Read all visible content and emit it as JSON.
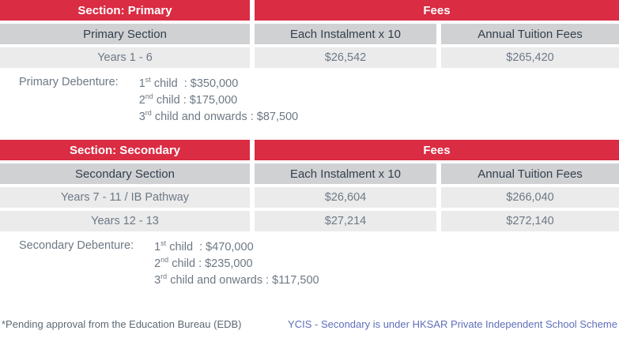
{
  "colors": {
    "header_red": "#da2c43",
    "subheader_gray": "#d0d1d3",
    "row_light": "#ebebec",
    "header_text_dark": "#33404d",
    "body_text": "#6d7884",
    "note_blue": "#5e6fba"
  },
  "primary": {
    "section_label": "Section: Primary",
    "fees_label": "Fees",
    "columns": [
      "Primary Section",
      "Each Instalment x 10",
      "Annual Tuition Fees"
    ],
    "rows": [
      {
        "label": "Years 1 - 6",
        "instalment": "$26,542",
        "annual": "$265,420"
      }
    ],
    "debenture": {
      "label": "Primary Debenture:",
      "rows": [
        {
          "num": "1",
          "sup": "st",
          "rest": " child  : $350,000"
        },
        {
          "num": "2",
          "sup": "nd",
          "rest": " child : $175,000"
        },
        {
          "num": "3",
          "sup": "rd",
          "rest": " child and onwards : $87,500"
        }
      ]
    }
  },
  "secondary": {
    "section_label": "Section: Secondary",
    "fees_label": "Fees",
    "columns": [
      "Secondary Section",
      "Each Instalment x 10",
      "Annual Tuition Fees"
    ],
    "rows": [
      {
        "label": "Years 7 - 11 / IB Pathway",
        "instalment": "$26,604",
        "annual": "$266,040"
      },
      {
        "label": "Years 12 - 13",
        "instalment": "$27,214",
        "annual": "$272,140"
      }
    ],
    "debenture": {
      "label": "Secondary Debenture:",
      "rows": [
        {
          "num": "1",
          "sup": "st",
          "rest": " child  : $470,000"
        },
        {
          "num": "2",
          "sup": "nd",
          "rest": " child : $235,000"
        },
        {
          "num": "3",
          "sup": "rd",
          "rest": " child and onwards : $117,500"
        }
      ]
    }
  },
  "footer": {
    "left": "*Pending approval from the Education Bureau (EDB)",
    "right": "YCIS - Secondary is under HKSAR Private Independent School Scheme"
  }
}
